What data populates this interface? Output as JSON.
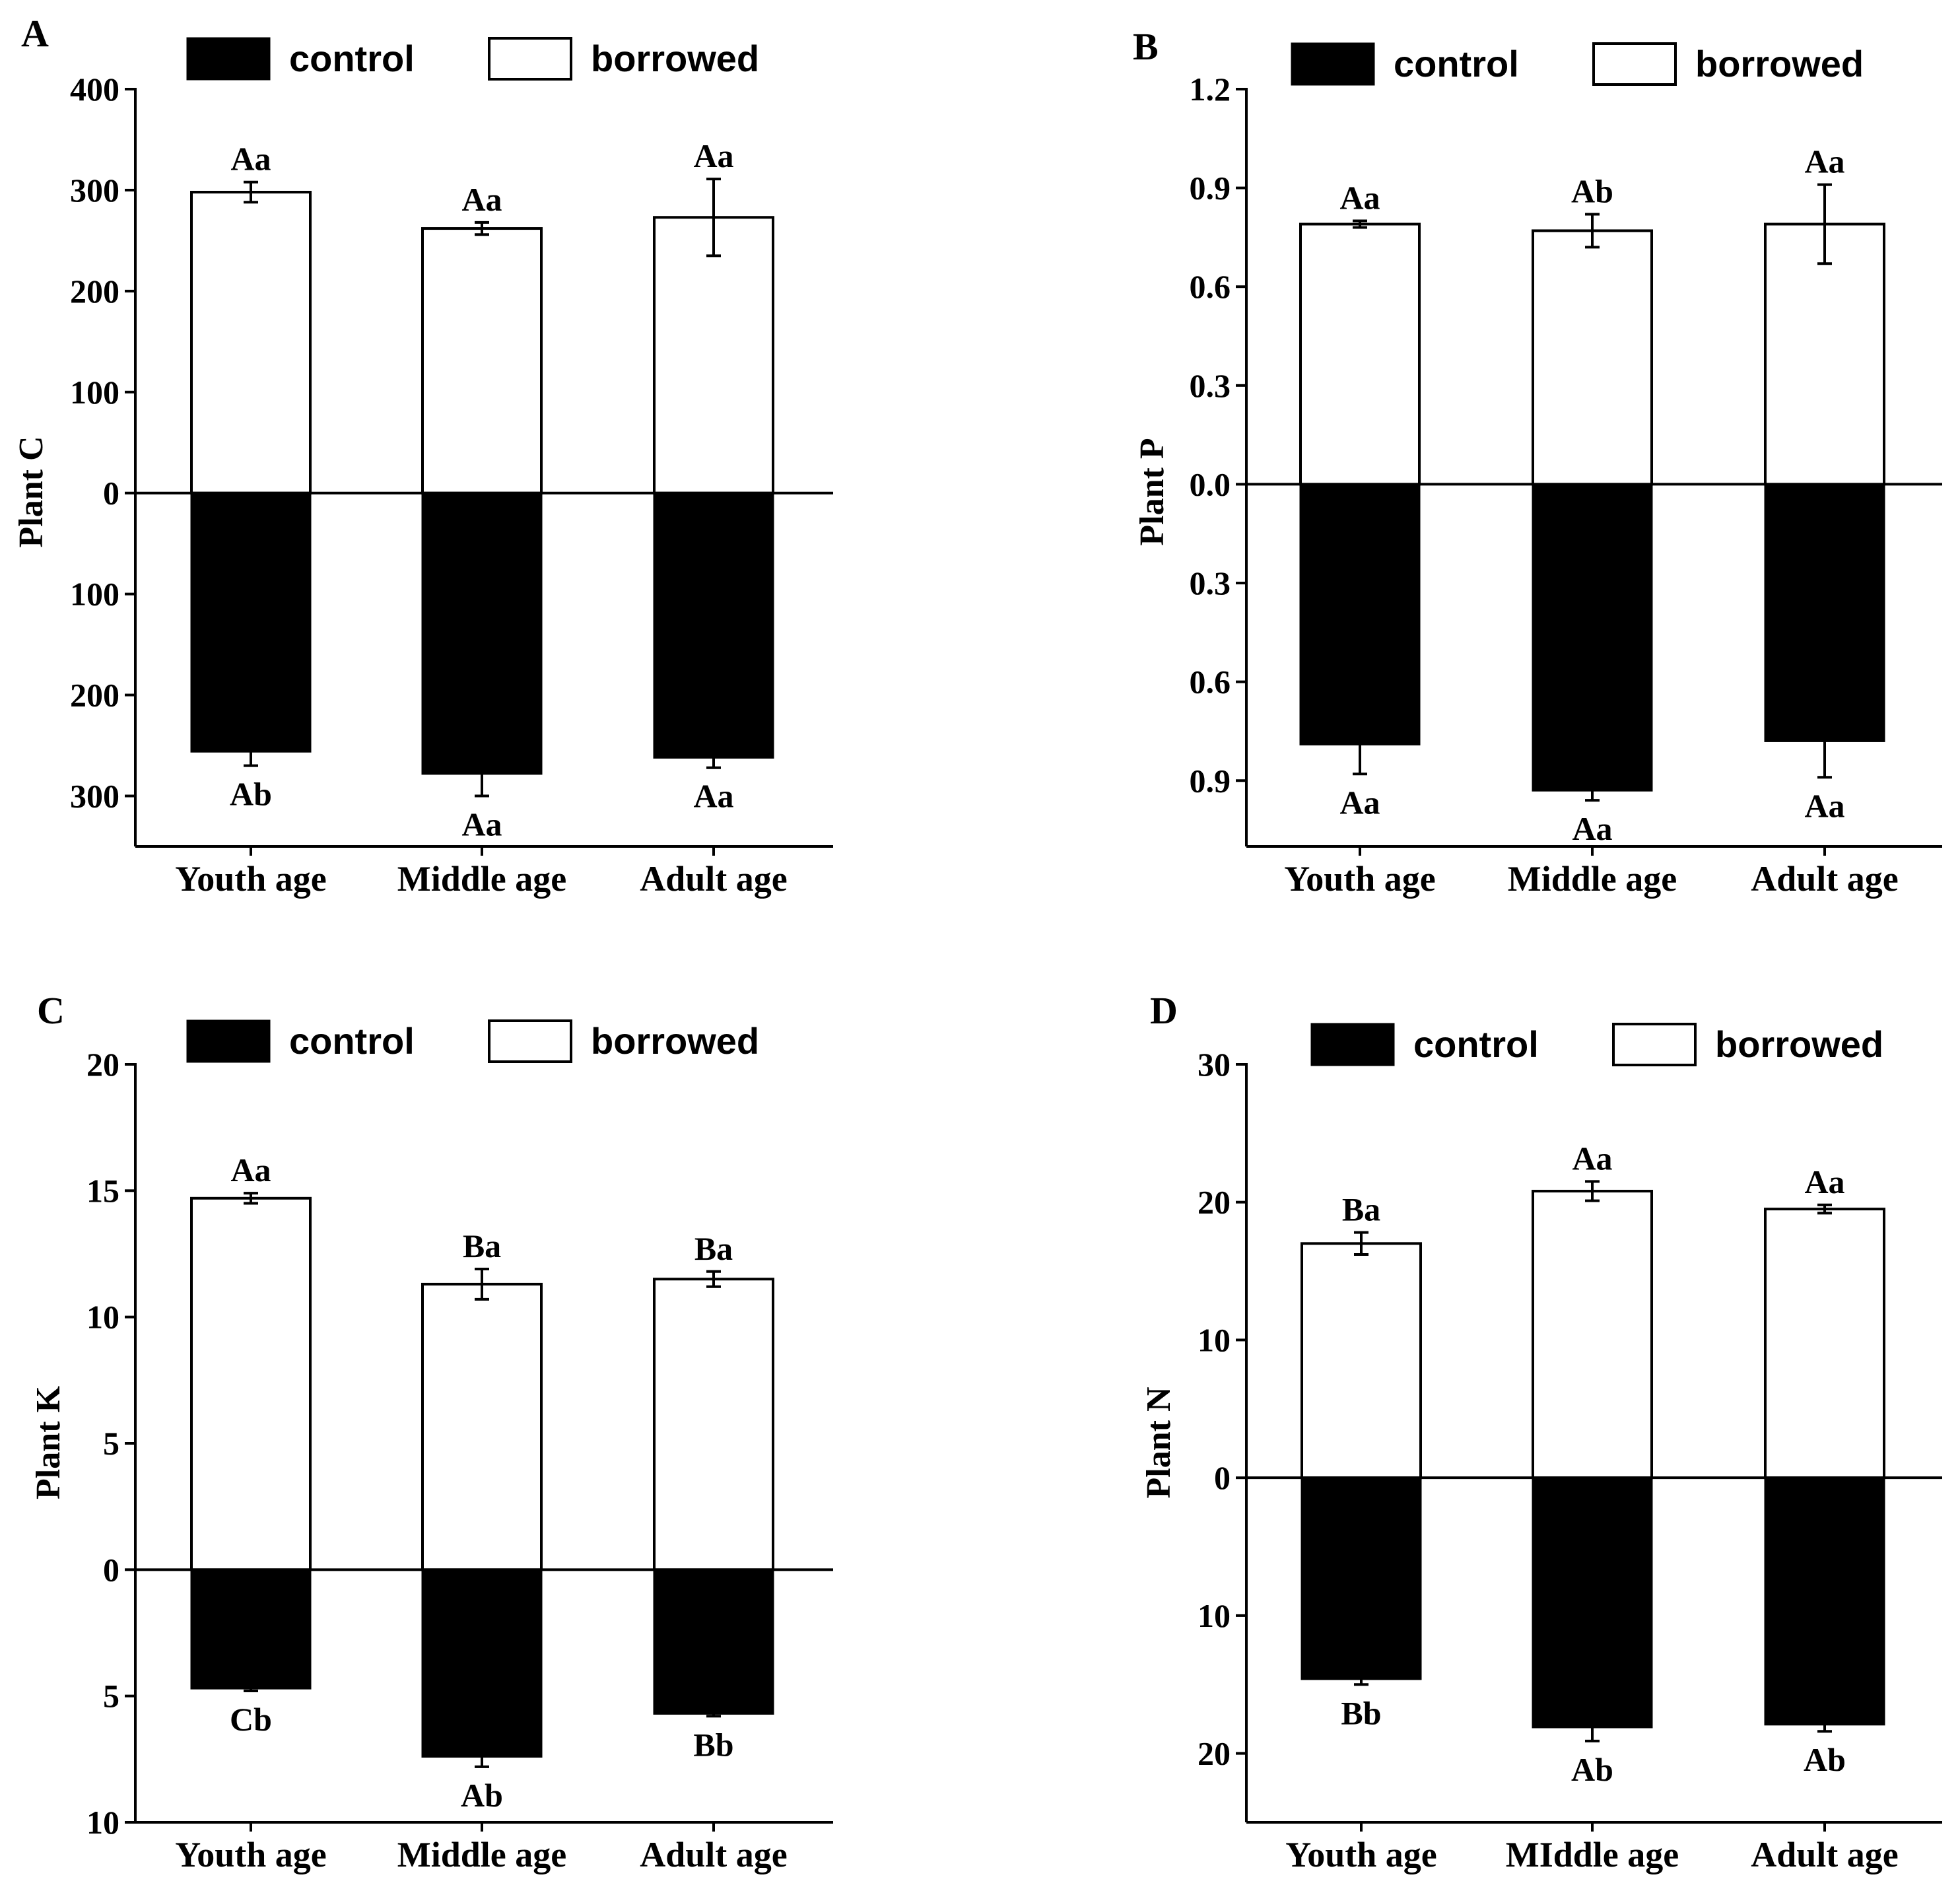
{
  "chart_data": [
    {
      "panel": "A",
      "type": "bar",
      "layout": "mirrored-stacked",
      "ylabel": "Plant C",
      "categories": [
        "Youth age",
        "Middle age",
        "Adult age"
      ],
      "ylim": [
        -350,
        400
      ],
      "yticks": [
        400,
        300,
        200,
        100,
        0,
        -100,
        -200,
        -300
      ],
      "ytick_labels": [
        "400",
        "300",
        "200",
        "100",
        "0",
        "100",
        "200",
        "300"
      ],
      "legend": [
        "control",
        "borrowed"
      ],
      "series": [
        {
          "name": "borrowed",
          "values": [
            298,
            262,
            273
          ],
          "errors": [
            10,
            6,
            38
          ],
          "labels": [
            "Aa",
            "Aa",
            "Aa"
          ]
        },
        {
          "name": "control",
          "values": [
            256,
            278,
            262
          ],
          "errors": [
            14,
            22,
            10
          ],
          "labels": [
            "Ab",
            "Aa",
            "Aa"
          ]
        }
      ],
      "colors": {
        "borrowed": "#ffffff",
        "control": "#000000"
      }
    },
    {
      "panel": "B",
      "type": "bar",
      "layout": "mirrored-stacked",
      "ylabel": "Plant P",
      "categories": [
        "Youth age",
        "Middle age",
        "Adult age"
      ],
      "ylim": [
        -1.1,
        1.2
      ],
      "yticks": [
        1.2,
        0.9,
        0.6,
        0.3,
        0.0,
        -0.3,
        -0.6,
        -0.9
      ],
      "ytick_labels": [
        "1.2",
        "0.9",
        "0.6",
        "0.3",
        "0.0",
        "0.3",
        "0.6",
        "0.9"
      ],
      "legend": [
        "control",
        "borrowed"
      ],
      "series": [
        {
          "name": "borrowed",
          "values": [
            0.79,
            0.77,
            0.79
          ],
          "errors": [
            0.01,
            0.05,
            0.12
          ],
          "labels": [
            "Aa",
            "Ab",
            "Aa"
          ]
        },
        {
          "name": "control",
          "values": [
            0.79,
            0.93,
            0.78
          ],
          "errors": [
            0.09,
            0.03,
            0.11
          ],
          "labels": [
            "Aa",
            "Aa",
            "Aa"
          ]
        }
      ],
      "colors": {
        "borrowed": "#ffffff",
        "control": "#000000"
      }
    },
    {
      "panel": "C",
      "type": "bar",
      "layout": "mirrored-stacked",
      "ylabel": "Plant K",
      "categories": [
        "Youth age",
        "Middle age",
        "Adult age"
      ],
      "ylim": [
        -10,
        20
      ],
      "yticks": [
        20,
        15,
        10,
        5,
        0,
        -5,
        -10
      ],
      "ytick_labels": [
        "20",
        "15",
        "10",
        "5",
        "0",
        "5",
        "10"
      ],
      "legend": [
        "control",
        "borrowed"
      ],
      "series": [
        {
          "name": "borrowed",
          "values": [
            14.7,
            11.3,
            11.5
          ],
          "errors": [
            0.2,
            0.6,
            0.3
          ],
          "labels": [
            "Aa",
            "Ba",
            "Ba"
          ]
        },
        {
          "name": "control",
          "values": [
            4.7,
            7.4,
            5.7
          ],
          "errors": [
            0.1,
            0.4,
            0.1
          ],
          "labels": [
            "Cb",
            "Ab",
            "Bb"
          ]
        }
      ],
      "colors": {
        "borrowed": "#ffffff",
        "control": "#000000"
      }
    },
    {
      "panel": "D",
      "type": "bar",
      "layout": "mirrored-stacked",
      "ylabel": "Plant N",
      "categories": [
        "Youth age",
        "MIddle age",
        "Adult age"
      ],
      "ylim": [
        -25,
        30
      ],
      "yticks": [
        30,
        20,
        10,
        0,
        -10,
        -20
      ],
      "ytick_labels": [
        "30",
        "20",
        "10",
        "0",
        "10",
        "20"
      ],
      "legend": [
        "control",
        "borrowed"
      ],
      "series": [
        {
          "name": "borrowed",
          "values": [
            17.0,
            20.8,
            19.5
          ],
          "errors": [
            0.8,
            0.7,
            0.3
          ],
          "labels": [
            "Ba",
            "Aa",
            "Aa"
          ]
        },
        {
          "name": "control",
          "values": [
            14.6,
            18.1,
            17.9
          ],
          "errors": [
            0.4,
            1.0,
            0.5
          ],
          "labels": [
            "Bb",
            "Ab",
            "Ab"
          ]
        }
      ],
      "colors": {
        "borrowed": "#ffffff",
        "control": "#000000"
      }
    }
  ]
}
